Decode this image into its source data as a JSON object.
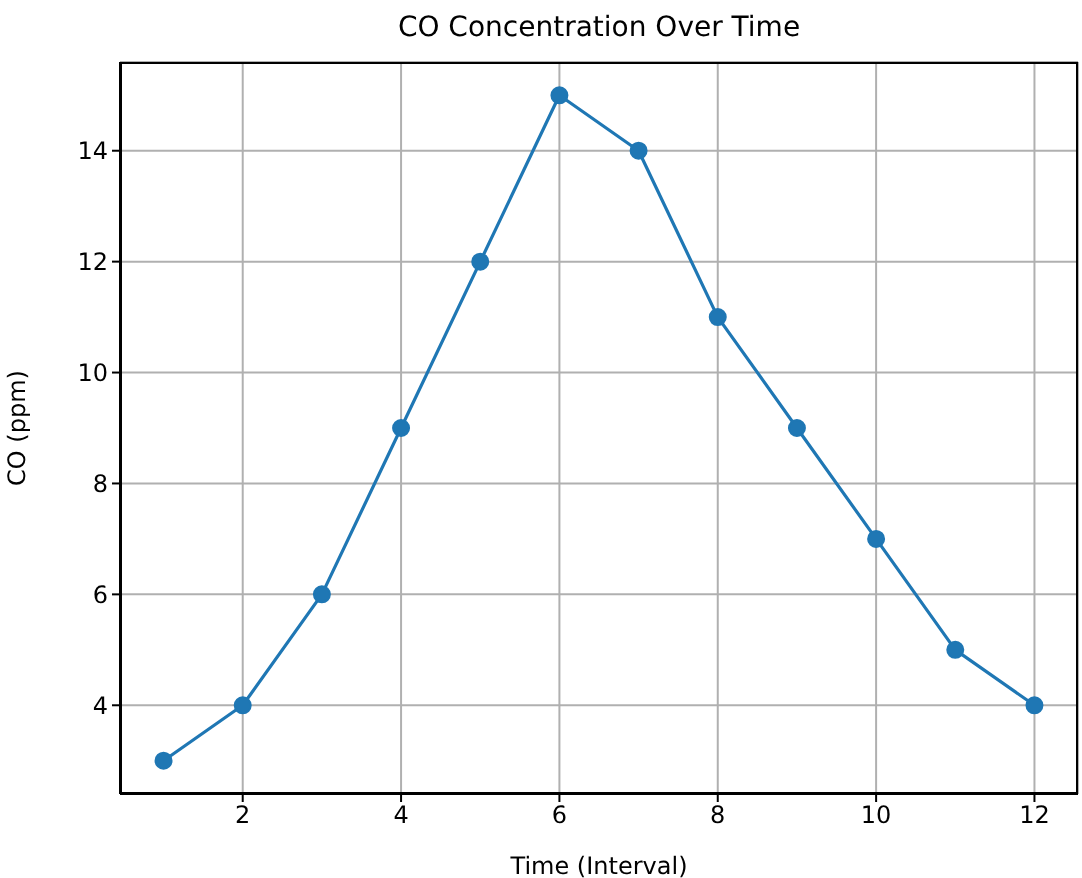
{
  "chart_data": {
    "type": "line",
    "title": "CO Concentration Over Time",
    "xlabel": "Time (Interval)",
    "ylabel": "CO (ppm)",
    "x": [
      1,
      2,
      3,
      4,
      5,
      6,
      7,
      8,
      9,
      10,
      11,
      12
    ],
    "series": [
      {
        "color": "#1f77b4",
        "values": [
          3,
          4,
          6,
          9,
          12,
          15,
          14,
          11,
          9,
          7,
          5,
          4
        ]
      }
    ],
    "xlim": [
      0.45,
      12.55
    ],
    "xticks": [
      2,
      4,
      6,
      8,
      10,
      12
    ],
    "ylim": [
      2.4,
      15.6
    ],
    "yticks": [
      4,
      6,
      8,
      10,
      12,
      14
    ],
    "grid": true,
    "marker": "circle",
    "line_style": "solid"
  }
}
